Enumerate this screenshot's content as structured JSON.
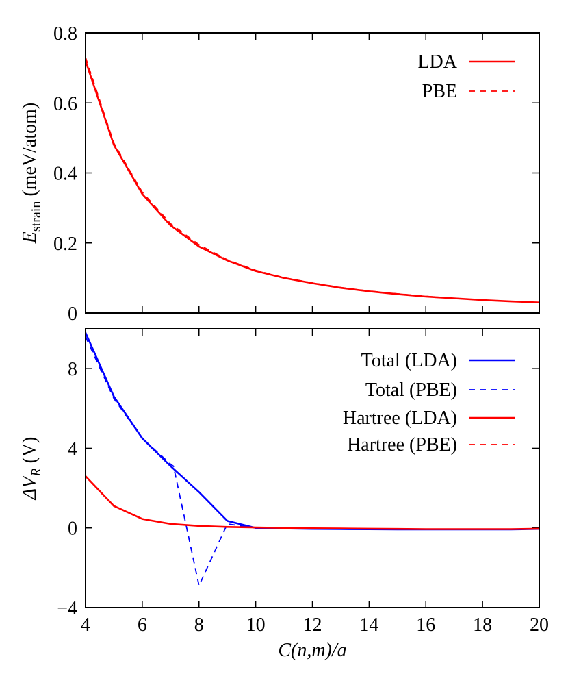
{
  "chart_data": [
    {
      "type": "line",
      "xlabel": "",
      "ylabel_main": "E",
      "ylabel_sub": "strain",
      "ylabel_rest": " (meV/atom)",
      "xlim": [
        4,
        20
      ],
      "ylim": [
        0,
        0.8
      ],
      "yticks": [
        0,
        0.2,
        0.4,
        0.6,
        0.8
      ],
      "ytick_labels": [
        "0",
        "0.2",
        "0.4",
        "0.6",
        "0.8"
      ],
      "xticks": [
        4,
        6,
        8,
        10,
        12,
        14,
        16,
        18,
        20
      ],
      "grid": false,
      "legend_position": "top-right",
      "series": [
        {
          "name": "LDA",
          "color": "#ff0000",
          "dash": "solid",
          "x": [
            4,
            5,
            6,
            7,
            8,
            9,
            10,
            11,
            12,
            13,
            14,
            15,
            16,
            17,
            18,
            19,
            20
          ],
          "y": [
            0.72,
            0.48,
            0.34,
            0.25,
            0.19,
            0.15,
            0.12,
            0.1,
            0.085,
            0.072,
            0.062,
            0.054,
            0.047,
            0.042,
            0.037,
            0.033,
            0.03
          ]
        },
        {
          "name": "PBE",
          "color": "#ff0000",
          "dash": "dashed",
          "x": [
            4,
            5,
            6,
            7,
            8,
            9,
            10,
            11,
            12,
            13,
            14,
            15,
            16,
            17,
            18,
            19,
            20
          ],
          "y": [
            0.73,
            0.485,
            0.345,
            0.255,
            0.195,
            0.152,
            0.122,
            0.101,
            0.086,
            0.073,
            0.063,
            0.055,
            0.048,
            0.042,
            0.037,
            0.033,
            0.03
          ]
        }
      ]
    },
    {
      "type": "line",
      "xlabel": "C(n,m)/a",
      "ylabel_main": "ΔV",
      "ylabel_sub": "R",
      "ylabel_rest": " (V)",
      "xlim": [
        4,
        20
      ],
      "ylim": [
        -4,
        10
      ],
      "yticks": [
        -4,
        0,
        4,
        8
      ],
      "ytick_labels": [
        "−4",
        "0",
        "4",
        "8"
      ],
      "xticks": [
        4,
        6,
        8,
        10,
        12,
        14,
        16,
        18,
        20
      ],
      "xtick_labels": [
        "4",
        "6",
        "8",
        "10",
        "12",
        "14",
        "16",
        "18",
        "20"
      ],
      "grid": false,
      "legend_position": "top-right",
      "series": [
        {
          "name": "Total (LDA)",
          "color": "#0000ff",
          "dash": "solid",
          "x": [
            4,
            5,
            6,
            7,
            8,
            9,
            10,
            11,
            12,
            13,
            14,
            15,
            16,
            17,
            18,
            19,
            20
          ],
          "y": [
            9.8,
            6.6,
            4.5,
            3.1,
            1.8,
            0.35,
            0.0,
            -0.03,
            -0.05,
            -0.06,
            -0.07,
            -0.08,
            -0.08,
            -0.08,
            -0.08,
            -0.08,
            -0.05
          ]
        },
        {
          "name": "Total (PBE)",
          "color": "#0000ff",
          "dash": "dashed",
          "x": [
            4,
            5,
            6,
            7,
            7.1,
            8,
            9,
            10,
            11,
            12,
            13,
            14,
            15,
            16,
            17,
            18,
            19,
            20
          ],
          "y": [
            9.6,
            6.5,
            4.5,
            3.2,
            3.1,
            -2.9,
            0.2,
            0.0,
            -0.03,
            -0.05,
            -0.06,
            -0.07,
            -0.08,
            -0.08,
            -0.08,
            -0.08,
            -0.08,
            -0.05
          ]
        },
        {
          "name": "Hartree (LDA)",
          "color": "#ff0000",
          "dash": "solid",
          "x": [
            4,
            5,
            6,
            7,
            8,
            9,
            10,
            11,
            12,
            13,
            14,
            15,
            16,
            17,
            18,
            19,
            20
          ],
          "y": [
            2.6,
            1.1,
            0.45,
            0.2,
            0.1,
            0.05,
            0.02,
            0.0,
            -0.02,
            -0.03,
            -0.04,
            -0.05,
            -0.06,
            -0.06,
            -0.06,
            -0.06,
            -0.04
          ]
        },
        {
          "name": "Hartree (PBE)",
          "color": "#ff0000",
          "dash": "dashed",
          "x": [
            4,
            5,
            6,
            7,
            8,
            9,
            10,
            11,
            12,
            13,
            14,
            15,
            16,
            17,
            18,
            19,
            20
          ],
          "y": [
            2.6,
            1.1,
            0.45,
            0.2,
            0.1,
            0.05,
            0.02,
            0.0,
            -0.02,
            -0.03,
            -0.04,
            -0.05,
            -0.06,
            -0.06,
            -0.06,
            -0.06,
            -0.04
          ]
        }
      ]
    }
  ]
}
